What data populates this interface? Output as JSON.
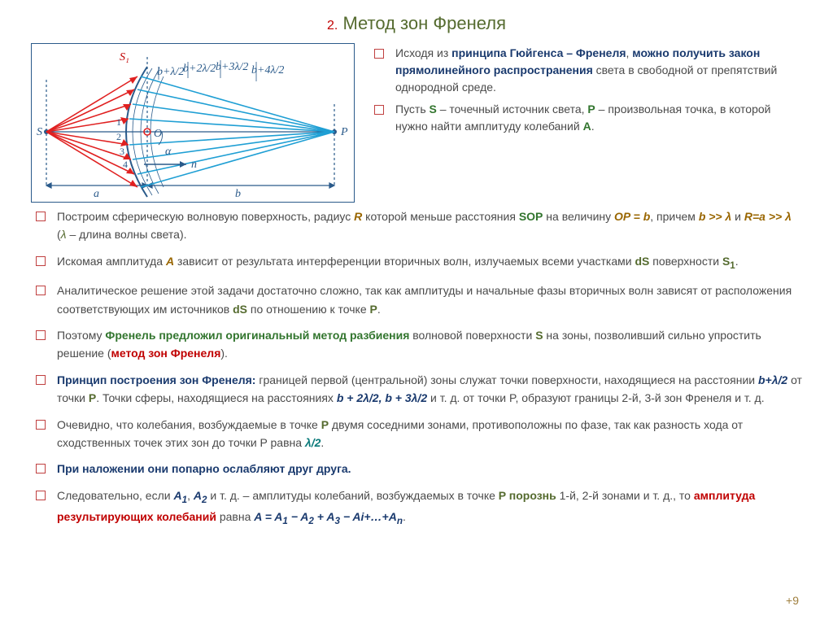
{
  "title_num": "2.",
  "title_text": "Метод зон Френеля",
  "top_bullets": [
    {
      "html": "Исходя из <b class='b-navy'>принципа Гюйгенса – Френеля</b>, <b class='b-navy'>можно получить закон прямолинейного распространения</b> света в свободной от препятствий однородной среде."
    },
    {
      "html": "Пусть <b class='b-green'>S</b> – точечный источник света, <b class='b-green'>P</b> – произвольная точка, в которой нужно найти амплитуду колебаний <b class='b-green'>A</b>."
    }
  ],
  "main_bullets": [
    {
      "html": "Построим сферическую волновую поверхность, радиус <b class='b-brown'><i>R</i></b> которой меньше расстояния <b class='b-green'>SOP</b> на величину <b class='b-brown'><i>OP = b</i></b>, причем <b class='b-brown'><i>b &gt;&gt; λ</i></b> и <b class='b-brown'><i>R=a &gt;&gt; λ</i></b> (<span class='i-olive'>λ</span> – длина волны света)."
    },
    {
      "html": "Искомая амплитуда <span class='b-brown'><i>A</i></span> зависит от результата интерференции вторичных волн, излучаемых всеми участками <b class='b-olive'>dS</b> поверхности <b class='b-olive'>S<sub>1</sub></b>."
    },
    {
      "html": "Аналитическое решение этой задачи достаточно сложно, так как амплитуды и начальные фазы вторичных волн зависят от расположения соответствующих им источников <b class='b-olive'>dS</b> по отношению к точке <b class='b-olive'>P</b>."
    },
    {
      "html": "Поэтому <b class='b-green'>Френель предложил оригинальный метод разбиения</b> волновой поверхности <b class='b-olive'>S</b> на зоны, позволивший сильно упростить решение (<b class='b-red'>метод зон Френеля</b>)."
    },
    {
      "html": "<b class='b-navy'>Принцип построения зон Френеля:</b> границей первой (центральной) зоны служат точки поверхности, находящиеся на расстоянии <b class='b-navy-i'>b+λ/2</b> от точки <b class='b-olive'>P</b>. Точки сферы, находящиеся на расстояниях <b class='b-navy-i'>b + 2λ/2, b + 3λ/2</b> и т. д. от точки P, образуют границы 2-й, 3-й зон Френеля и т. д."
    },
    {
      "html": "Очевидно, что колебания, возбуждаемые в точке <b class='b-olive'>P</b> двумя соседними зонами, противоположны по фазе, так как разность хода от сходственных точек этих зон до точки P равна <b class='b-teal'><i>λ/2</i></b>."
    },
    {
      "html": "<b class='b-navy'>При наложении они попарно ослабляют друг друга.</b>"
    },
    {
      "html": "Следовательно, если <span class='b-navy-i'>A<sub>1</sub></span>, <span class='b-navy-i'>A<sub>2</sub></span>  и т. д. – амплитуды колебаний, возбуждаемых в точке <b class='b-olive'>P порознь</b> 1-й, 2-й зонами и т. д., то <b class='b-red'>амплитуда результирующих колебаний</b> равна <span class='b-navy-i'>A = A<sub>1</sub> − A<sub>2</sub> + A<sub>3</sub> − Ai+…+A<sub>n</sub></span>."
    }
  ],
  "diagram": {
    "S_label": "S",
    "S1_label": "S₁",
    "P_label": "P",
    "O_label": "O",
    "a_label": "a",
    "b_label": "b",
    "alpha_label": "α",
    "n_label": "n⃗",
    "ray_labels": [
      "b+λ/2",
      "b+2λ/2",
      "b+3λ/2",
      "b+4λ/2"
    ],
    "zone_nums": [
      "1",
      "2",
      "3",
      "4"
    ],
    "axis_color": "#2a5a8a",
    "red": "#e02020",
    "blue": "#1f9fd4",
    "dark": "#2a5a8a"
  },
  "footer": "+9"
}
